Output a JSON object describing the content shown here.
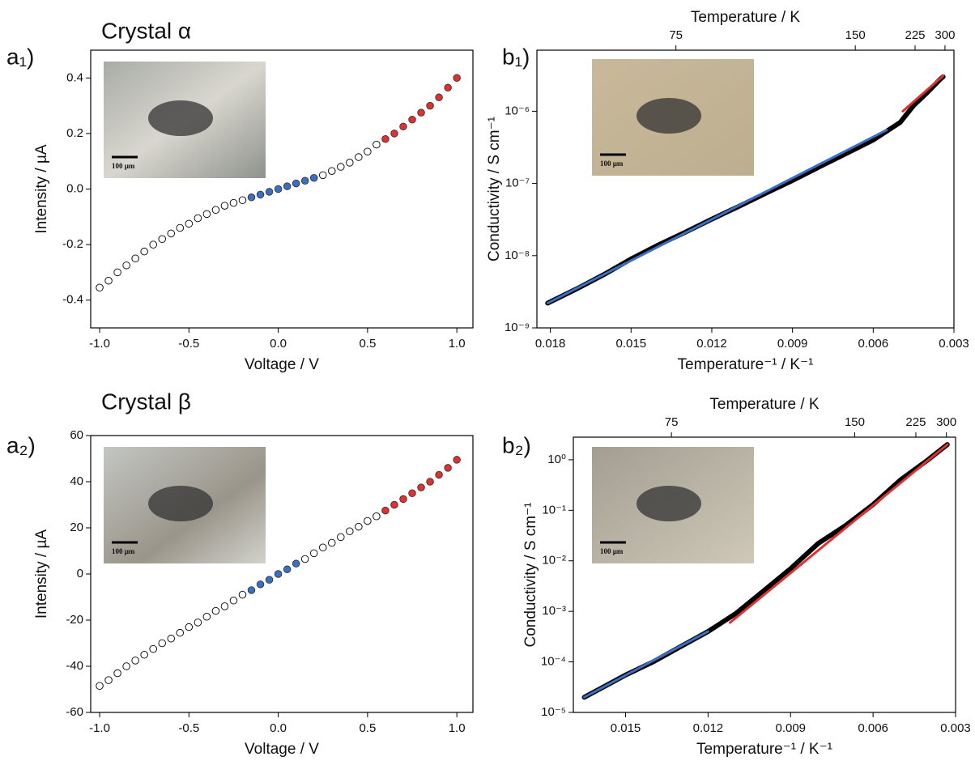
{
  "chart_data": [
    {
      "type": "scatter",
      "panel_label": "a₁)",
      "title": "Crystal α",
      "xlabel": "Voltage / V",
      "ylabel": "Intensity / µA",
      "inset_scale": "100 µm",
      "xlim": [
        -1.05,
        1.09
      ],
      "xticks": [
        {
          "value": -1,
          "label": "-1.0"
        },
        -0.5,
        {
          "value": 0,
          "label": "0.0"
        },
        0.5,
        {
          "value": 1,
          "label": "1.0"
        }
      ],
      "ylim": [
        -0.5,
        0.5
      ],
      "yticks": [
        -0.4,
        -0.2,
        {
          "value": 0,
          "label": "0.0"
        },
        0.2,
        0.4
      ],
      "series": [
        {
          "color": "#000000",
          "marker": "open",
          "x": [
            -1.0,
            -0.95,
            -0.9,
            -0.85,
            -0.8,
            -0.75,
            -0.7,
            -0.65,
            -0.6,
            -0.55,
            -0.5,
            -0.45,
            -0.4,
            -0.35,
            -0.3,
            -0.25,
            -0.2,
            0.25,
            0.3,
            0.35,
            0.4,
            0.45,
            0.5,
            0.55
          ],
          "values": [
            -0.355,
            -0.33,
            -0.3,
            -0.275,
            -0.25,
            -0.225,
            -0.2,
            -0.18,
            -0.16,
            -0.14,
            -0.125,
            -0.105,
            -0.09,
            -0.075,
            -0.06,
            -0.05,
            -0.04,
            0.05,
            0.065,
            0.08,
            0.095,
            0.115,
            0.135,
            0.16
          ]
        },
        {
          "color": "#3a6fc4",
          "marker": "filled",
          "x": [
            -0.15,
            -0.1,
            -0.05,
            0,
            0.05,
            0.1,
            0.15,
            0.2
          ],
          "values": [
            -0.03,
            -0.02,
            -0.01,
            0,
            0.01,
            0.02,
            0.03,
            0.04
          ]
        },
        {
          "color": "#e03030",
          "marker": "filled",
          "x": [
            0.6,
            0.65,
            0.7,
            0.75,
            0.8,
            0.85,
            0.9,
            0.95,
            1.0
          ],
          "values": [
            0.18,
            0.2,
            0.225,
            0.25,
            0.275,
            0.3,
            0.33,
            0.365,
            0.4
          ]
        }
      ]
    },
    {
      "type": "line",
      "panel_label": "b₁)",
      "xlabel": "Temperature⁻¹ / K⁻¹",
      "ylabel": "Conductivity / S cm⁻¹",
      "x2label": "Temperature / K",
      "inset_scale": "100 µm",
      "log_y": true,
      "xlim": [
        0.0185,
        0.003
      ],
      "xticks": [
        0.018,
        0.015,
        0.012,
        0.009,
        0.006,
        0.003
      ],
      "x2ticks": [
        75,
        150,
        225,
        300
      ],
      "ylim": [
        1e-09,
        7e-06
      ],
      "yticks": [
        {
          "value": 1e-09,
          "label": "10⁻⁹"
        },
        {
          "value": 1e-08,
          "label": "10⁻⁸"
        },
        {
          "value": 1e-07,
          "label": "10⁻⁷"
        },
        {
          "value": 1e-06,
          "label": "10⁻⁶"
        }
      ],
      "series": [
        {
          "color": "#000000",
          "x": [
            0.0181,
            0.017,
            0.016,
            0.015,
            0.014,
            0.013,
            0.012,
            0.011,
            0.01,
            0.009,
            0.008,
            0.007,
            0.006,
            0.005,
            0.0045,
            0.004,
            0.0035,
            0.0034
          ],
          "values": [
            2.2e-09,
            3.5e-09,
            5.5e-09,
            9e-09,
            1.4e-08,
            2.1e-08,
            3.2e-08,
            4.8e-08,
            7.3e-08,
            1.1e-07,
            1.7e-07,
            2.6e-07,
            4e-07,
            7e-07,
            1.2e-06,
            1.8e-06,
            2.8e-06,
            3e-06
          ]
        },
        {
          "color": "#3a6fc4",
          "x": [
            0.0181,
            0.0055
          ],
          "values": [
            2.2e-09,
            5.5e-07
          ]
        },
        {
          "color": "#e03030",
          "x": [
            0.0049,
            0.0034
          ],
          "values": [
            1e-06,
            3.1e-06
          ]
        }
      ]
    },
    {
      "type": "scatter",
      "panel_label": "a₂)",
      "title": "Crystal β",
      "xlabel": "Voltage / V",
      "ylabel": "Intensity / µA",
      "inset_scale": "100 µm",
      "xlim": [
        -1.05,
        1.09
      ],
      "xticks": [
        {
          "value": -1,
          "label": "-1.0"
        },
        -0.5,
        {
          "value": 0,
          "label": "0.0"
        },
        0.5,
        {
          "value": 1,
          "label": "1.0"
        }
      ],
      "ylim": [
        -60,
        60
      ],
      "yticks": [
        -60,
        -40,
        -20,
        0,
        20,
        40,
        60
      ],
      "series": [
        {
          "color": "#000000",
          "marker": "open",
          "x": [
            -1.0,
            -0.95,
            -0.9,
            -0.85,
            -0.8,
            -0.75,
            -0.7,
            -0.65,
            -0.6,
            -0.55,
            -0.5,
            -0.45,
            -0.4,
            -0.35,
            -0.3,
            -0.25,
            -0.2,
            0.15,
            0.2,
            0.25,
            0.3,
            0.35,
            0.4,
            0.45,
            0.5,
            0.55
          ],
          "values": [
            -48.5,
            -46,
            -43,
            -40,
            -37.5,
            -35,
            -32.5,
            -30,
            -28,
            -25.5,
            -23,
            -21,
            -18.5,
            -16,
            -14,
            -11.5,
            -9,
            6.5,
            9,
            11.5,
            13.5,
            16,
            18.5,
            20.5,
            23,
            25
          ]
        },
        {
          "color": "#3a6fc4",
          "marker": "filled",
          "x": [
            -0.15,
            -0.1,
            -0.05,
            0,
            0.05,
            0.1
          ],
          "values": [
            -7,
            -4.5,
            -2.5,
            0,
            2,
            4.5
          ]
        },
        {
          "color": "#e03030",
          "marker": "filled",
          "x": [
            0.6,
            0.65,
            0.7,
            0.75,
            0.8,
            0.85,
            0.9,
            0.95,
            1.0
          ],
          "values": [
            27.5,
            30,
            32.5,
            35,
            37.5,
            40,
            43,
            46,
            49.5
          ]
        }
      ]
    },
    {
      "type": "line",
      "panel_label": "b₂)",
      "xlabel": "Temperature⁻¹ / K⁻¹",
      "ylabel": "Conductivity / S cm⁻¹",
      "x2label": "Temperature / K",
      "inset_scale": "100 µm",
      "log_y": true,
      "xlim": [
        0.0169,
        0.003
      ],
      "xticks": [
        0.015,
        0.012,
        0.009,
        0.006,
        0.003
      ],
      "x2ticks": [
        75,
        150,
        225,
        300
      ],
      "ylim": [
        1e-05,
        2.8
      ],
      "yticks": [
        {
          "value": 1e-05,
          "label": "10⁻⁵"
        },
        {
          "value": 0.0001,
          "label": "10⁻⁴"
        },
        {
          "value": 0.001,
          "label": "10⁻³"
        },
        {
          "value": 0.01,
          "label": "10⁻²"
        },
        {
          "value": 0.1,
          "label": "10⁻¹"
        },
        {
          "value": 1,
          "label": "10⁰"
        }
      ],
      "series": [
        {
          "color": "#000000",
          "x": [
            0.0165,
            0.015,
            0.014,
            0.013,
            0.012,
            0.011,
            0.01,
            0.009,
            0.008,
            0.007,
            0.006,
            0.005,
            0.004,
            0.0033
          ],
          "values": [
            2e-05,
            5.5e-05,
            0.0001,
            0.0002,
            0.0004,
            0.0009,
            0.0025,
            0.007,
            0.022,
            0.05,
            0.13,
            0.4,
            1,
            2
          ]
        },
        {
          "color": "#3a6fc4",
          "x": [
            0.0165,
            0.012
          ],
          "values": [
            2e-05,
            0.0004
          ]
        },
        {
          "color": "#e03030",
          "x": [
            0.0112,
            0.0033
          ],
          "values": [
            0.0006,
            2
          ]
        }
      ]
    }
  ]
}
